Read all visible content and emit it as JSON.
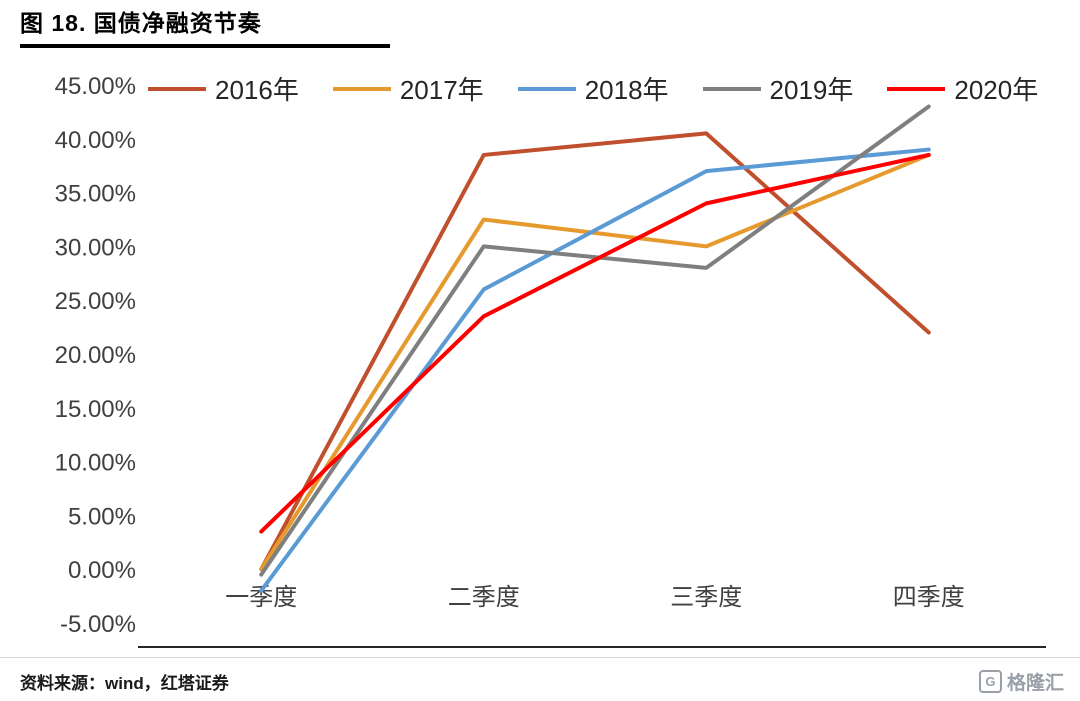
{
  "title": "图 18. 国债净融资节奏",
  "footer": {
    "source": "资料来源：wind，红塔证券",
    "logo_mark": "G",
    "logo_text": "格隆汇"
  },
  "chart_data": {
    "type": "line",
    "title": "国债净融资节奏",
    "categories": [
      "一季度",
      "二季度",
      "三季度",
      "四季度"
    ],
    "series": [
      {
        "name": "2016年",
        "color": "#C0502D",
        "values": [
          0.0,
          38.5,
          40.5,
          22.0
        ]
      },
      {
        "name": "2017年",
        "color": "#E69A2E",
        "values": [
          0.0,
          32.5,
          30.0,
          38.5
        ]
      },
      {
        "name": "2018年",
        "color": "#5B9BD5",
        "values": [
          -2.0,
          26.0,
          37.0,
          39.0
        ]
      },
      {
        "name": "2019年",
        "color": "#7F7F7F",
        "values": [
          -0.5,
          30.0,
          28.0,
          43.0
        ]
      },
      {
        "name": "2020年",
        "color": "#FF0000",
        "values": [
          3.5,
          23.5,
          34.0,
          38.5
        ]
      }
    ],
    "ylim": [
      -5,
      45
    ],
    "ytick_step": 5,
    "ytick_format": "percent2",
    "legend_position": "top",
    "grid": false
  }
}
